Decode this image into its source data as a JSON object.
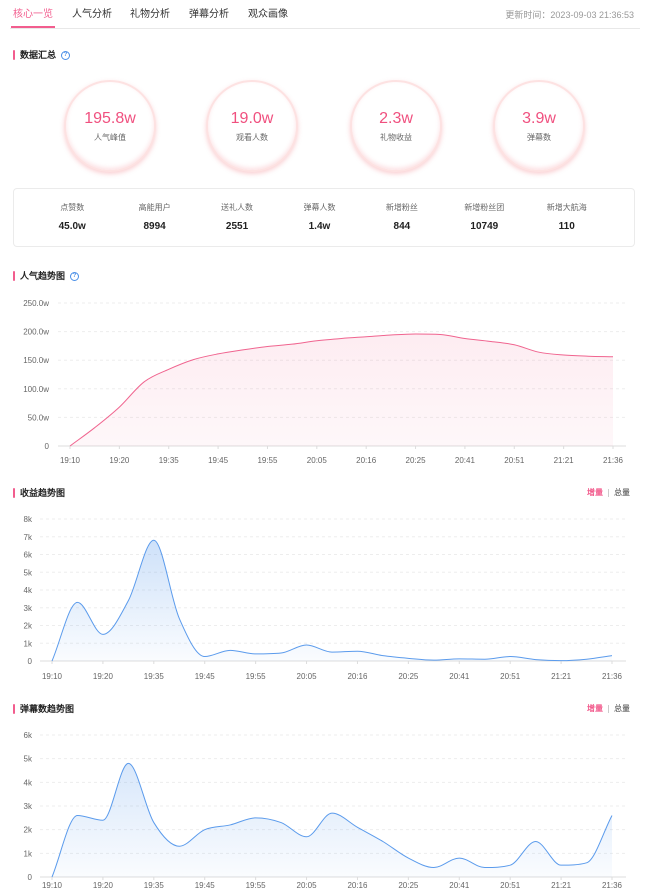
{
  "tabs": [
    {
      "label": "核心一览"
    },
    {
      "label": "人气分析"
    },
    {
      "label": "礼物分析"
    },
    {
      "label": "弹幕分析"
    },
    {
      "label": "观众画像"
    }
  ],
  "active_tab": "核心一览",
  "update_time": "更新时间：2023-09-03 21:36:53",
  "icons": {
    "help": "help-icon",
    "section_marker": "section-marker"
  },
  "colors": {
    "accent": "#f25d8e",
    "help": "#4a8fe7",
    "popularity_line": "#f0648f",
    "trend_line": "#5b9bec"
  },
  "summary": {
    "title": "数据汇总",
    "circles": [
      {
        "value": "195.8w",
        "label": "人气峰值"
      },
      {
        "value": "19.0w",
        "label": "观看人数"
      },
      {
        "value": "2.3w",
        "label": "礼物收益"
      },
      {
        "value": "3.9w",
        "label": "弹幕数"
      }
    ],
    "stats": [
      {
        "label": "点赞数",
        "value": "45.0w"
      },
      {
        "label": "高能用户",
        "value": "8994"
      },
      {
        "label": "送礼人数",
        "value": "2551"
      },
      {
        "label": "弹幕人数",
        "value": "1.4w"
      },
      {
        "label": "新增粉丝",
        "value": "844"
      },
      {
        "label": "新增粉丝团",
        "value": "10749"
      },
      {
        "label": "新增大航海",
        "value": "110"
      }
    ]
  },
  "revenue_toggle": {
    "options": [
      "增量",
      "总量"
    ],
    "selected": "增量"
  },
  "danmaku_toggle": {
    "options": [
      "增量",
      "总量"
    ],
    "selected": "增量"
  },
  "chart_data": [
    {
      "type": "area",
      "title": "人气趋势图",
      "xlabel": "",
      "ylabel": "",
      "categories": [
        "19:10",
        "",
        "19:20",
        "",
        "19:35",
        "",
        "19:45",
        "",
        "19:55",
        "",
        "20:05",
        "",
        "20:16",
        "",
        "20:25",
        "",
        "20:41",
        "",
        "20:51",
        "",
        "21:21",
        "",
        "21:36"
      ],
      "values": [
        0,
        32,
        68,
        112,
        134,
        151,
        161,
        168,
        174,
        178,
        184,
        188,
        191,
        194,
        195.8,
        195,
        188,
        183,
        177,
        164,
        159,
        157,
        156
      ],
      "ylim": [
        0,
        250
      ],
      "y_tick_labels": [
        "0",
        "50.0w",
        "100.0w",
        "150.0w",
        "200.0w",
        "250.0w"
      ],
      "grid": true
    },
    {
      "type": "area",
      "title": "收益趋势图",
      "xlabel": "",
      "ylabel": "",
      "categories": [
        "19:10",
        "",
        "19:20",
        "",
        "19:35",
        "",
        "19:45",
        "",
        "19:55",
        "",
        "20:05",
        "",
        "20:16",
        "",
        "20:25",
        "",
        "20:41",
        "",
        "20:51",
        "",
        "21:21",
        "",
        "21:36"
      ],
      "values": [
        0,
        3.3,
        1.5,
        3.4,
        6.8,
        2.4,
        0.25,
        0.6,
        0.4,
        0.45,
        0.9,
        0.5,
        0.55,
        0.3,
        0.15,
        0.05,
        0.12,
        0.1,
        0.25,
        0.08,
        0.02,
        0.1,
        0.3
      ],
      "ylim": [
        0,
        8
      ],
      "y_tick_labels": [
        "0",
        "1k",
        "2k",
        "3k",
        "4k",
        "5k",
        "6k",
        "7k",
        "8k"
      ],
      "grid": true
    },
    {
      "type": "area",
      "title": "弹幕数趋势图",
      "xlabel": "",
      "ylabel": "",
      "categories": [
        "19:10",
        "",
        "19:20",
        "",
        "19:35",
        "",
        "19:45",
        "",
        "19:55",
        "",
        "20:05",
        "",
        "20:16",
        "",
        "20:25",
        "",
        "20:41",
        "",
        "20:51",
        "",
        "21:21",
        "",
        "21:36"
      ],
      "values": [
        0,
        2.6,
        2.4,
        4.8,
        2.3,
        1.3,
        2.0,
        2.2,
        2.5,
        2.3,
        1.7,
        2.7,
        2.1,
        1.5,
        0.8,
        0.4,
        0.8,
        0.4,
        0.5,
        1.5,
        0.5,
        0.6,
        2.6
      ],
      "ylim": [
        0,
        6
      ],
      "y_tick_labels": [
        "0",
        "1k",
        "2k",
        "3k",
        "4k",
        "5k",
        "6k"
      ],
      "grid": true
    }
  ]
}
